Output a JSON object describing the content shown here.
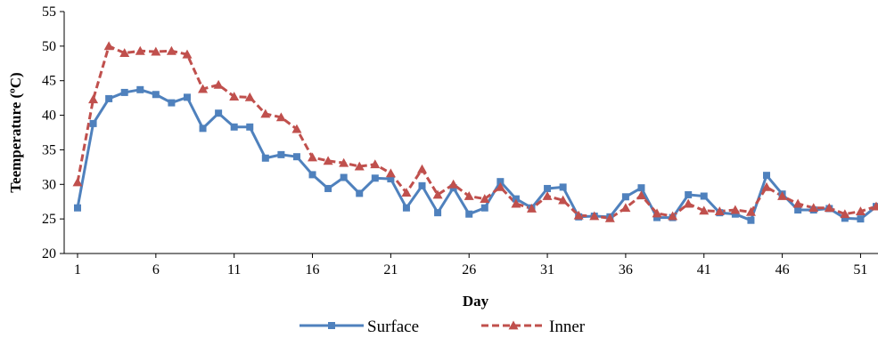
{
  "chart_data": {
    "type": "line",
    "title": "",
    "xlabel": "Day",
    "ylabel": "Teemperature (ºC)",
    "xlim": [
      1,
      52
    ],
    "ylim": [
      20,
      55
    ],
    "x_ticks": [
      1,
      6,
      11,
      16,
      21,
      26,
      31,
      36,
      41,
      46,
      51
    ],
    "y_ticks": [
      20,
      25,
      30,
      35,
      40,
      45,
      50,
      55
    ],
    "grid": false,
    "legend_position": "bottom",
    "x": [
      1,
      2,
      3,
      4,
      5,
      6,
      7,
      8,
      9,
      10,
      11,
      12,
      13,
      14,
      15,
      16,
      17,
      18,
      19,
      20,
      21,
      22,
      23,
      24,
      25,
      26,
      27,
      28,
      29,
      30,
      31,
      32,
      33,
      34,
      35,
      36,
      37,
      38,
      39,
      40,
      41,
      42,
      43,
      44,
      45,
      46,
      47,
      48,
      49,
      50,
      51,
      52
    ],
    "series": [
      {
        "name": "Surface",
        "color": "#4F81BD",
        "marker": "square",
        "line_style": "solid",
        "values": [
          26.6,
          38.8,
          42.4,
          43.3,
          43.7,
          43.0,
          41.8,
          42.6,
          38.1,
          40.3,
          38.3,
          38.3,
          33.8,
          34.3,
          34.0,
          31.4,
          29.4,
          31.0,
          28.7,
          30.9,
          30.8,
          26.6,
          29.8,
          25.9,
          29.5,
          25.7,
          26.6,
          30.4,
          27.9,
          26.6,
          29.4,
          29.6,
          25.3,
          25.4,
          25.3,
          28.2,
          29.5,
          25.2,
          25.2,
          28.5,
          28.3,
          25.9,
          25.7,
          24.8,
          31.3,
          28.6,
          26.3,
          26.3,
          26.5,
          25.1,
          25.0,
          26.8
        ]
      },
      {
        "name": "Inner",
        "color": "#C0504D",
        "marker": "triangle",
        "line_style": "dashed",
        "values": [
          30.3,
          42.3,
          50.0,
          49.0,
          49.3,
          49.2,
          49.3,
          48.8,
          43.8,
          44.4,
          42.7,
          42.6,
          40.2,
          39.7,
          38.0,
          33.9,
          33.4,
          33.1,
          32.6,
          32.9,
          31.6,
          28.8,
          32.2,
          28.5,
          30.0,
          28.3,
          27.9,
          29.6,
          27.2,
          26.5,
          28.3,
          27.7,
          25.5,
          25.4,
          25.1,
          26.6,
          28.4,
          25.8,
          25.4,
          27.2,
          26.2,
          26.1,
          26.3,
          26.0,
          29.6,
          28.3,
          27.2,
          26.6,
          26.6,
          25.7,
          26.1,
          26.8
        ]
      }
    ]
  }
}
